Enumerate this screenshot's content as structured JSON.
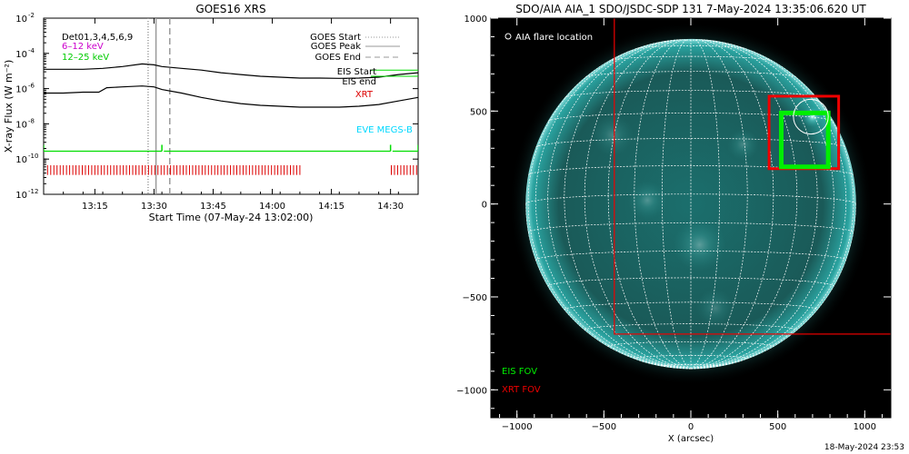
{
  "colors": {
    "background": "#ffffff",
    "axis": "#000000",
    "flux_series": "#000000",
    "eis_series": "#00dd00",
    "xrt_series": "#dd0000",
    "eve_series": "#00d8ff",
    "goes_markers": "#9a9a9a",
    "sun_color": "#2aa3a0",
    "grid_color": "#ffffff",
    "eis_fov": "#00ee00",
    "xrt_fov": "#ee0000"
  },
  "chart_data": [
    {
      "type": "line",
      "title": "GOES16 XRS",
      "xlabel": "Start Time (07-May-24 13:02:00)",
      "ylabel": "X-ray Flux (W m⁻²)",
      "x_unit": "minutes since 13:02:00",
      "xlim": [
        0,
        95
      ],
      "ylim_exp": [
        -12,
        -2
      ],
      "yscale": "log",
      "x_ticks": [
        {
          "label": "13:15",
          "value": 13
        },
        {
          "label": "13:30",
          "value": 28
        },
        {
          "label": "13:45",
          "value": 43
        },
        {
          "label": "14:00",
          "value": 58
        },
        {
          "label": "14:15",
          "value": 73
        },
        {
          "label": "14:30",
          "value": 88
        }
      ],
      "y_ticks": [
        {
          "label": "10",
          "sup": "-2",
          "exp": -2
        },
        {
          "label": "10",
          "sup": "-4",
          "exp": -4
        },
        {
          "label": "10",
          "sup": "-6",
          "exp": -6
        },
        {
          "label": "10",
          "sup": "-8",
          "exp": -8
        },
        {
          "label": "10",
          "sup": "-10",
          "exp": -10
        },
        {
          "label": "10",
          "sup": "-12",
          "exp": -12
        }
      ],
      "legend_left": [
        {
          "text": "Det01,3,4,5,6,9",
          "color": "#000000"
        },
        {
          "text": "6–12 keV",
          "color": "#cc00cc"
        },
        {
          "text": "12–25 keV",
          "color": "#00cc00"
        }
      ],
      "legend_right": [
        {
          "text": "GOES Start",
          "style": "dotted",
          "color": "#9a9a9a"
        },
        {
          "text": "GOES Peak",
          "style": "solid",
          "color": "#9a9a9a"
        },
        {
          "text": "GOES End",
          "style": "dashed",
          "color": "#9a9a9a"
        }
      ],
      "series_labels": [
        {
          "text": "EIS Start",
          "color": "#000000"
        },
        {
          "text": "EIS end",
          "color": "#000000"
        },
        {
          "text": "XRT",
          "color": "#dd0000"
        },
        {
          "text": "EVE MEGS-B",
          "color": "#00d8ff"
        }
      ],
      "goes_markers": [
        {
          "name": "GOES Start",
          "x": 26.5,
          "style": "dotted"
        },
        {
          "name": "GOES Peak",
          "x": 28.5,
          "style": "solid"
        },
        {
          "name": "GOES End",
          "x": 32,
          "style": "dashed"
        }
      ],
      "flux_long": {
        "name": "flux-long",
        "x": [
          0,
          5,
          10,
          15,
          20,
          25,
          28,
          30,
          35,
          40,
          45,
          50,
          55,
          60,
          65,
          70,
          75,
          80,
          85,
          90,
          95
        ],
        "exp": [
          -4.9,
          -4.9,
          -4.9,
          -4.85,
          -4.75,
          -4.6,
          -4.65,
          -4.75,
          -4.85,
          -4.95,
          -5.1,
          -5.2,
          -5.3,
          -5.35,
          -5.4,
          -5.4,
          -5.42,
          -5.4,
          -5.35,
          -5.2,
          -5.1
        ]
      },
      "flux_short": {
        "name": "flux-short",
        "x": [
          0,
          5,
          10,
          14,
          16,
          20,
          25,
          28,
          30,
          35,
          40,
          45,
          50,
          55,
          60,
          65,
          70,
          75,
          80,
          85,
          90,
          95
        ],
        "exp": [
          -6.25,
          -6.25,
          -6.2,
          -6.2,
          -5.95,
          -5.9,
          -5.85,
          -5.9,
          -6.05,
          -6.25,
          -6.5,
          -6.7,
          -6.85,
          -6.95,
          -7.0,
          -7.05,
          -7.05,
          -7.05,
          -7.0,
          -6.9,
          -6.7,
          -6.5
        ]
      },
      "eis_start_line": {
        "exp": -4.95,
        "x_from": 83,
        "x_to": 95
      },
      "eis_end_line": {
        "exp": -5.3,
        "x_from": 83,
        "x_to": 95
      },
      "eis_coverage": {
        "exp": -9.55,
        "segments": [
          [
            0,
            30
          ],
          [
            30.5,
            88
          ],
          [
            88.5,
            95
          ]
        ],
        "ticks": [
          0,
          30,
          88,
          95
        ]
      },
      "xrt_observations": {
        "exp_bottom": -10.9,
        "exp_top": -10.35,
        "x_values": [
          1,
          1.8,
          2.6,
          3.4,
          4.2,
          5,
          5.8,
          6.6,
          7.4,
          8.2,
          9,
          9.8,
          10.6,
          11.4,
          12.2,
          13,
          13.8,
          14.6,
          15.4,
          16.2,
          17,
          17.8,
          18.6,
          19.4,
          20.2,
          21,
          21.8,
          22.6,
          23.4,
          24.2,
          25,
          25.8,
          26.6,
          27.4,
          28.2,
          29,
          29.8,
          30.6,
          31.4,
          32.2,
          33,
          33.8,
          34.6,
          35.4,
          36.2,
          37,
          37.8,
          38.6,
          39.4,
          40.2,
          41,
          41.8,
          42.6,
          43.4,
          44.2,
          45,
          45.8,
          46.6,
          47.4,
          48.2,
          49,
          49.8,
          50.6,
          51.4,
          52.2,
          53,
          53.8,
          54.6,
          55.4,
          56.2,
          57,
          57.8,
          58.6,
          59.4,
          60.2,
          61,
          61.8,
          62.6,
          63.4,
          64.2,
          65,
          88.2,
          89,
          89.8,
          90.6,
          91.4,
          92.2,
          93,
          93.8,
          94.6
        ]
      },
      "eve_megs_b": {
        "exp": -12.15
      }
    },
    {
      "type": "scatter",
      "title": "SDO/AIA AIA_1 SDO/JSDC-SDP 131  7-May-2024 13:35:06.620 UT",
      "xlabel": "X (arcsec)",
      "xlim": [
        -1150,
        1150
      ],
      "ylim": [
        -1150,
        1000
      ],
      "x_ticks": [
        {
          "label": "−1000",
          "value": -1000
        },
        {
          "label": "−500",
          "value": -500
        },
        {
          "label": "0",
          "value": 0
        },
        {
          "label": "500",
          "value": 500
        },
        {
          "label": "1000",
          "value": 1000
        }
      ],
      "y_ticks": [
        {
          "label": "1000",
          "value": 1000
        },
        {
          "label": "500",
          "value": 500
        },
        {
          "label": "0",
          "value": 0
        },
        {
          "label": "−500",
          "value": -500
        },
        {
          "label": "−1000",
          "value": -1000
        }
      ],
      "solar_radius_arcsec": 950,
      "flare_location_label": "AIA flare location",
      "flare_location": {
        "x": 690,
        "y": 470,
        "radius": 100
      },
      "fov_legend": [
        {
          "text": "EIS FOV",
          "color": "#00ee00"
        },
        {
          "text": "XRT FOV",
          "color": "#ee0000"
        }
      ],
      "xrt_fov_large": {
        "x1": -440,
        "y1": 1080,
        "x2": 1160,
        "y2": -700
      },
      "xrt_fov_small": {
        "x1": 450,
        "y1": 580,
        "x2": 850,
        "y2": 190
      },
      "eis_fov": {
        "x1": 520,
        "y1": 490,
        "x2": 790,
        "y2": 200
      },
      "bright_regions": [
        {
          "x": 700,
          "y": 470,
          "r": 60,
          "opacity": 0.95
        },
        {
          "x": 50,
          "y": -220,
          "r": 150,
          "opacity": 0.35
        },
        {
          "x": -250,
          "y": 20,
          "r": 110,
          "opacity": 0.3
        },
        {
          "x": 300,
          "y": 320,
          "r": 90,
          "opacity": 0.25
        },
        {
          "x": -450,
          "y": 370,
          "r": 120,
          "opacity": 0.25
        },
        {
          "x": 140,
          "y": -560,
          "r": 110,
          "opacity": 0.22
        }
      ]
    }
  ],
  "footer": {
    "timestamp": "18-May-2024 23:53"
  }
}
